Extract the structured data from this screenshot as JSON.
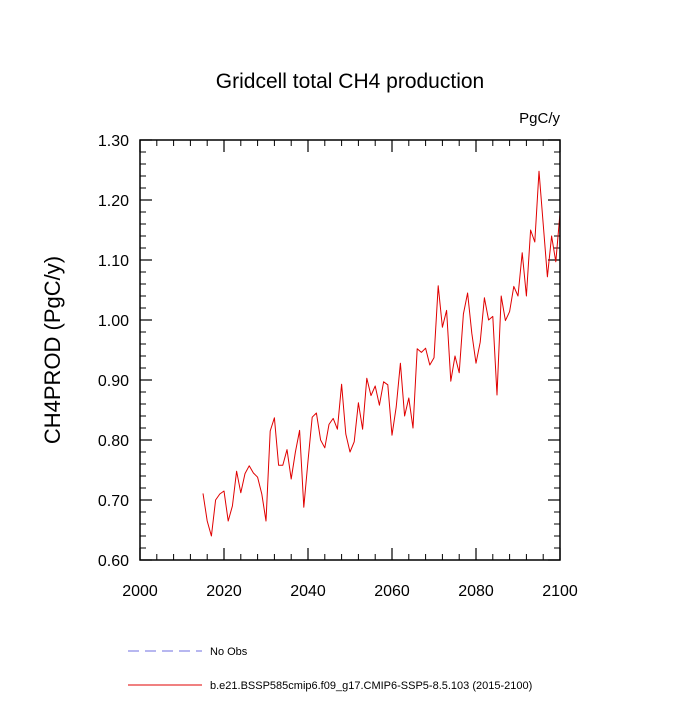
{
  "chart_data": {
    "type": "line",
    "title": "Gridcell total CH4 production",
    "units_label": "PgC/y",
    "xlabel": "",
    "ylabel": "CH4PROD  (PgC/y)",
    "xlim": [
      2000,
      2100
    ],
    "ylim": [
      0.6,
      1.3
    ],
    "xticks": [
      2000,
      2020,
      2040,
      2060,
      2080,
      2100
    ],
    "yticks": [
      0.6,
      0.7,
      0.8,
      0.9,
      1.0,
      1.1,
      1.2,
      1.3
    ],
    "ytick_labels": [
      "0.60",
      "0.70",
      "0.80",
      "0.90",
      "1.00",
      "1.10",
      "1.20",
      "1.30"
    ],
    "series": [
      {
        "name": "b.e21.BSSP585cmip6.f09_g17.CMIP6-SSP5-8.5.103 (2015-2100)",
        "color": "#e00000",
        "style": "solid",
        "x": [
          2015,
          2016,
          2017,
          2018,
          2019,
          2020,
          2021,
          2022,
          2023,
          2024,
          2025,
          2026,
          2027,
          2028,
          2029,
          2030,
          2031,
          2032,
          2033,
          2034,
          2035,
          2036,
          2037,
          2038,
          2039,
          2040,
          2041,
          2042,
          2043,
          2044,
          2045,
          2046,
          2047,
          2048,
          2049,
          2050,
          2051,
          2052,
          2053,
          2054,
          2055,
          2056,
          2057,
          2058,
          2059,
          2060,
          2061,
          2062,
          2063,
          2064,
          2065,
          2066,
          2067,
          2068,
          2069,
          2070,
          2071,
          2072,
          2073,
          2074,
          2075,
          2076,
          2077,
          2078,
          2079,
          2080,
          2081,
          2082,
          2083,
          2084,
          2085,
          2086,
          2087,
          2088,
          2089,
          2090,
          2091,
          2092,
          2093,
          2094,
          2095,
          2096,
          2097,
          2098,
          2099,
          2100
        ],
        "values": [
          0.711,
          0.665,
          0.64,
          0.7,
          0.71,
          0.715,
          0.665,
          0.69,
          0.748,
          0.712,
          0.744,
          0.757,
          0.745,
          0.738,
          0.71,
          0.665,
          0.815,
          0.837,
          0.758,
          0.758,
          0.784,
          0.735,
          0.78,
          0.816,
          0.688,
          0.765,
          0.838,
          0.845,
          0.8,
          0.787,
          0.826,
          0.836,
          0.818,
          0.893,
          0.81,
          0.78,
          0.797,
          0.862,
          0.818,
          0.903,
          0.874,
          0.89,
          0.858,
          0.897,
          0.892,
          0.808,
          0.855,
          0.928,
          0.84,
          0.87,
          0.82,
          0.952,
          0.946,
          0.953,
          0.925,
          0.937,
          1.057,
          0.988,
          1.016,
          0.898,
          0.94,
          0.912,
          1.01,
          1.045,
          0.978,
          0.928,
          0.963,
          1.037,
          1.0,
          1.006,
          0.875,
          1.04,
          0.999,
          1.014,
          1.056,
          1.04,
          1.112,
          1.04,
          1.15,
          1.13,
          1.248,
          1.16,
          1.072,
          1.14,
          1.097,
          1.178
        ]
      },
      {
        "name": "No Obs",
        "color": "#6f6fe0",
        "style": "dashed",
        "x": [],
        "values": []
      }
    ],
    "legend_position": "bottom"
  }
}
